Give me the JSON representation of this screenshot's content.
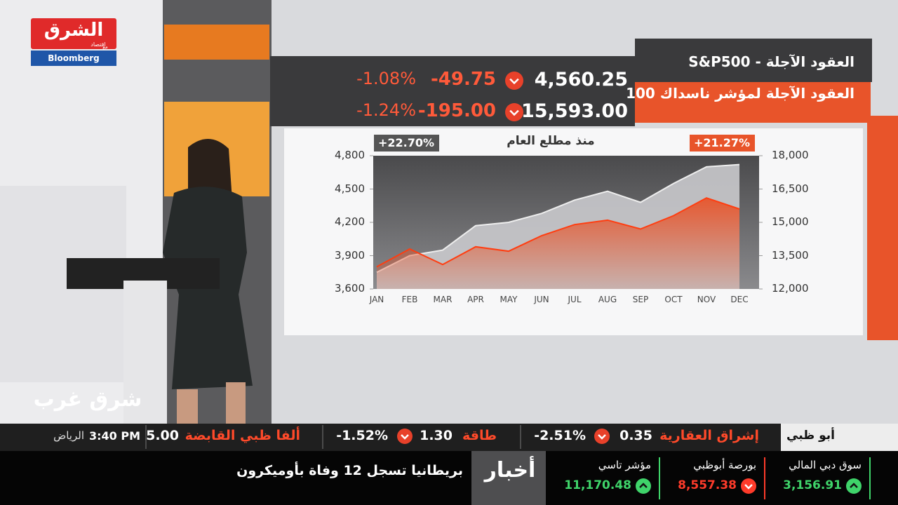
{
  "logo": {
    "name": "الشرق",
    "sub": "اقتصاد",
    "with": "مع",
    "partner": "Bloomberg"
  },
  "quotes": [
    {
      "name": "العقود الآجلة - S&P500",
      "price": "4,560.25",
      "change": "-49.75",
      "percent": "-1.08%"
    },
    {
      "name": "العقود الآجلة لمؤشر ناسداك 100",
      "price": "15,593.00",
      "change": "-195.00",
      "percent": "-1.24%"
    }
  ],
  "chart": {
    "type": "area",
    "title": "منذ مطلع العام",
    "categories": [
      "JAN",
      "FEB",
      "MAR",
      "APR",
      "MAY",
      "JUN",
      "JUL",
      "AUG",
      "SEP",
      "OCT",
      "NOV",
      "DEC"
    ],
    "series": [
      {
        "badge": "+22.70%",
        "color": "#c9c9cc",
        "values": [
          3750,
          3900,
          3950,
          4170,
          4200,
          4280,
          4400,
          4480,
          4380,
          4550,
          4700,
          4720
        ]
      },
      {
        "badge": "+21.27%",
        "color": "#e8542a",
        "axis": "y2",
        "values": [
          13000,
          13800,
          13100,
          13900,
          13700,
          14400,
          14900,
          15100,
          14700,
          15300,
          16100,
          15600
        ]
      }
    ],
    "ylim": [
      3600,
      4800
    ],
    "yticks": [
      {
        "value": 3600,
        "label": "3,600"
      },
      {
        "value": 3900,
        "label": "3,900"
      },
      {
        "value": 4200,
        "label": "4,200"
      },
      {
        "value": 4500,
        "label": "4,500"
      },
      {
        "value": 4800,
        "label": "4,800"
      }
    ],
    "y2lim": [
      12000,
      18000
    ],
    "y2ticks": [
      {
        "value": 12000,
        "label": "12,000"
      },
      {
        "value": 13500,
        "label": "13,500"
      },
      {
        "value": 15000,
        "label": "15,000"
      },
      {
        "value": 16500,
        "label": "16,500"
      },
      {
        "value": 18000,
        "label": "18,000"
      }
    ]
  },
  "show": "شرق غرب",
  "ticker": {
    "region": "أبو ظبي",
    "items": [
      {
        "name": "إشراق العقارية",
        "price": "0.35",
        "percent": "-2.51%"
      },
      {
        "name": "طاقة",
        "price": "1.30",
        "percent": "-1.52%"
      },
      {
        "name": "ألفا ظبي القابضة",
        "price": "5.00"
      }
    ],
    "time": "3:40 PM",
    "city": "الرياض"
  },
  "markets": [
    {
      "name": "سوق دبي المالي",
      "value": "3,156.91",
      "color": "#3fd46a"
    },
    {
      "name": "بورصة أبوظبي",
      "value": "8,557.38",
      "color": "#ff3b2a"
    },
    {
      "name": "مؤشر تاسي",
      "value": "11,170.48",
      "color": "#3fd46a"
    }
  ],
  "news": {
    "label": "أخبار",
    "headline": "بريطانيا تسجل 12 وفاة بأوميكرون"
  }
}
